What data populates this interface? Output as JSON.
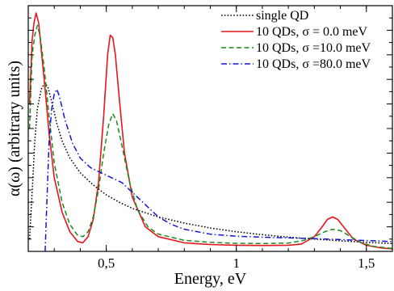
{
  "chart_data": {
    "type": "line",
    "xlabel": "Energy, eV",
    "ylabel": "α(ω) (arbitrary units)",
    "xlim": [
      0.2,
      1.6
    ],
    "ylim": [
      0,
      1.0
    ],
    "x_ticks": [
      {
        "value": 0.5,
        "label": "0,5"
      },
      {
        "value": 1.0,
        "label": "1"
      },
      {
        "value": 1.5,
        "label": "1,5"
      }
    ],
    "y_tick_labels": false,
    "grid": false,
    "legend_position": "top-right",
    "series": [
      {
        "name": "single QD",
        "color": "#000000",
        "dash": "dotted",
        "points": [
          [
            0.205,
            0.05
          ],
          [
            0.215,
            0.24
          ],
          [
            0.225,
            0.45
          ],
          [
            0.235,
            0.58
          ],
          [
            0.25,
            0.66
          ],
          [
            0.263,
            0.685
          ],
          [
            0.275,
            0.67
          ],
          [
            0.29,
            0.61
          ],
          [
            0.31,
            0.52
          ],
          [
            0.33,
            0.45
          ],
          [
            0.36,
            0.38
          ],
          [
            0.4,
            0.32
          ],
          [
            0.45,
            0.27
          ],
          [
            0.5,
            0.23
          ],
          [
            0.55,
            0.2
          ],
          [
            0.6,
            0.175
          ],
          [
            0.7,
            0.14
          ],
          [
            0.8,
            0.115
          ],
          [
            0.9,
            0.095
          ],
          [
            1.0,
            0.08
          ],
          [
            1.1,
            0.068
          ],
          [
            1.2,
            0.058
          ],
          [
            1.3,
            0.05
          ],
          [
            1.4,
            0.043
          ],
          [
            1.5,
            0.037
          ],
          [
            1.6,
            0.032
          ]
        ]
      },
      {
        "name": "10 QDs, σ = 0.0 meV",
        "color": "#e8141c",
        "dash": "solid",
        "points": [
          [
            0.205,
            0.6
          ],
          [
            0.215,
            0.86
          ],
          [
            0.222,
            0.93
          ],
          [
            0.23,
            0.97
          ],
          [
            0.24,
            0.93
          ],
          [
            0.25,
            0.82
          ],
          [
            0.265,
            0.66
          ],
          [
            0.28,
            0.48
          ],
          [
            0.3,
            0.3
          ],
          [
            0.33,
            0.16
          ],
          [
            0.36,
            0.08
          ],
          [
            0.39,
            0.04
          ],
          [
            0.41,
            0.035
          ],
          [
            0.43,
            0.06
          ],
          [
            0.45,
            0.13
          ],
          [
            0.47,
            0.28
          ],
          [
            0.49,
            0.55
          ],
          [
            0.505,
            0.8
          ],
          [
            0.515,
            0.88
          ],
          [
            0.525,
            0.87
          ],
          [
            0.535,
            0.8
          ],
          [
            0.55,
            0.62
          ],
          [
            0.57,
            0.4
          ],
          [
            0.6,
            0.22
          ],
          [
            0.65,
            0.1
          ],
          [
            0.7,
            0.06
          ],
          [
            0.8,
            0.035
          ],
          [
            0.9,
            0.028
          ],
          [
            1.0,
            0.025
          ],
          [
            1.1,
            0.024
          ],
          [
            1.2,
            0.025
          ],
          [
            1.25,
            0.03
          ],
          [
            1.3,
            0.06
          ],
          [
            1.33,
            0.1
          ],
          [
            1.35,
            0.13
          ],
          [
            1.37,
            0.14
          ],
          [
            1.39,
            0.13
          ],
          [
            1.42,
            0.09
          ],
          [
            1.45,
            0.05
          ],
          [
            1.5,
            0.025
          ],
          [
            1.55,
            0.015
          ],
          [
            1.6,
            0.01
          ]
        ]
      },
      {
        "name": "10 QDs, σ =10.0 meV",
        "color": "#1a8a1a",
        "dash": "dashed",
        "points": [
          [
            0.205,
            0.5
          ],
          [
            0.215,
            0.8
          ],
          [
            0.225,
            0.88
          ],
          [
            0.235,
            0.92
          ],
          [
            0.245,
            0.88
          ],
          [
            0.26,
            0.76
          ],
          [
            0.28,
            0.55
          ],
          [
            0.3,
            0.36
          ],
          [
            0.33,
            0.2
          ],
          [
            0.36,
            0.11
          ],
          [
            0.39,
            0.065
          ],
          [
            0.41,
            0.06
          ],
          [
            0.43,
            0.08
          ],
          [
            0.45,
            0.14
          ],
          [
            0.47,
            0.25
          ],
          [
            0.49,
            0.4
          ],
          [
            0.51,
            0.52
          ],
          [
            0.525,
            0.56
          ],
          [
            0.54,
            0.53
          ],
          [
            0.56,
            0.43
          ],
          [
            0.59,
            0.28
          ],
          [
            0.62,
            0.17
          ],
          [
            0.66,
            0.1
          ],
          [
            0.7,
            0.07
          ],
          [
            0.8,
            0.045
          ],
          [
            0.9,
            0.037
          ],
          [
            1.0,
            0.033
          ],
          [
            1.1,
            0.032
          ],
          [
            1.2,
            0.034
          ],
          [
            1.26,
            0.045
          ],
          [
            1.3,
            0.06
          ],
          [
            1.34,
            0.08
          ],
          [
            1.37,
            0.09
          ],
          [
            1.4,
            0.085
          ],
          [
            1.44,
            0.06
          ],
          [
            1.48,
            0.035
          ],
          [
            1.53,
            0.02
          ],
          [
            1.6,
            0.012
          ]
        ]
      },
      {
        "name": "10 QDs, σ =80.0 meV",
        "color": "#1515d8",
        "dash": "dashdot",
        "points": [
          [
            0.265,
            0.0
          ],
          [
            0.27,
            0.15
          ],
          [
            0.28,
            0.45
          ],
          [
            0.29,
            0.58
          ],
          [
            0.3,
            0.64
          ],
          [
            0.31,
            0.66
          ],
          [
            0.32,
            0.63
          ],
          [
            0.34,
            0.54
          ],
          [
            0.37,
            0.44
          ],
          [
            0.4,
            0.38
          ],
          [
            0.44,
            0.34
          ],
          [
            0.48,
            0.32
          ],
          [
            0.52,
            0.3
          ],
          [
            0.56,
            0.28
          ],
          [
            0.6,
            0.24
          ],
          [
            0.65,
            0.19
          ],
          [
            0.7,
            0.14
          ],
          [
            0.75,
            0.11
          ],
          [
            0.8,
            0.09
          ],
          [
            0.9,
            0.07
          ],
          [
            1.0,
            0.062
          ],
          [
            1.1,
            0.058
          ],
          [
            1.2,
            0.055
          ],
          [
            1.3,
            0.052
          ],
          [
            1.4,
            0.048
          ],
          [
            1.5,
            0.044
          ],
          [
            1.6,
            0.04
          ]
        ]
      }
    ]
  }
}
